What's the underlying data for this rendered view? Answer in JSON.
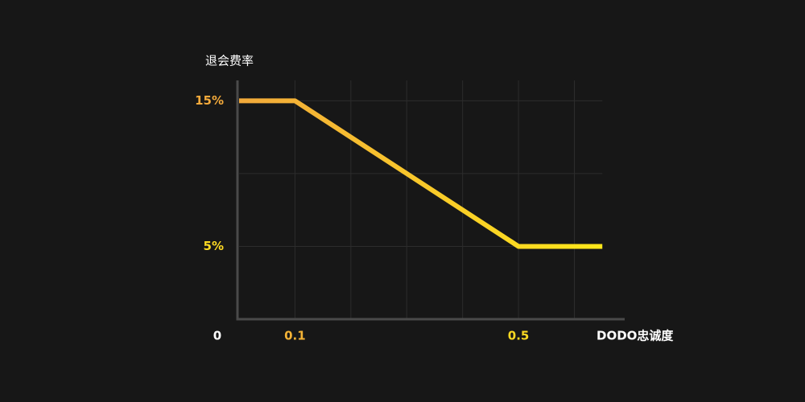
{
  "chart_data": {
    "type": "line",
    "y_label": "退会费率",
    "x_label": "DODO忠诚度",
    "x": [
      0,
      0.1,
      0.5,
      0.65
    ],
    "series": [
      {
        "values": [
          15,
          15,
          5,
          5
        ],
        "color": [
          "#f2a93b",
          "#ffe81a"
        ]
      }
    ],
    "xlim": [
      0,
      0.69
    ],
    "ylim": [
      0,
      16.4
    ],
    "xticks": [
      0,
      0.1,
      0.5
    ],
    "yticks": [
      {
        "value": 15,
        "label": "15%"
      },
      {
        "value": 5,
        "label": "5%"
      }
    ],
    "xgrid": [
      0.1,
      0.2,
      0.3,
      0.4,
      0.5,
      0.6
    ],
    "ygrid": [
      5,
      10,
      15
    ],
    "grid": true
  }
}
